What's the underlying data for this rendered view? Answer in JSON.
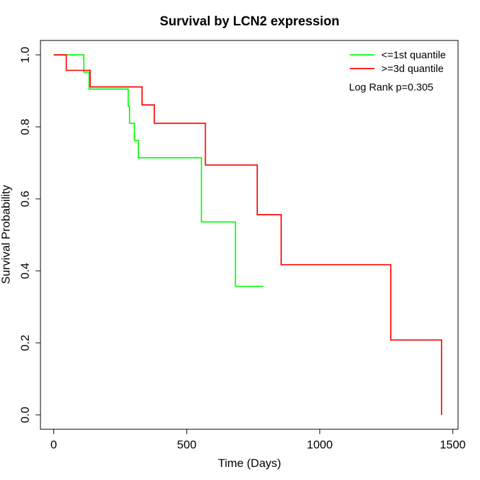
{
  "chart_data": {
    "type": "line",
    "title": "Survival by LCN2 expression",
    "xlabel": "Time (Days)",
    "ylabel": "Survival Probability",
    "xlim": [
      -50,
      1520
    ],
    "ylim": [
      -0.04,
      1.04
    ],
    "x_ticks": [
      0,
      500,
      1000,
      1500
    ],
    "y_ticks": [
      0.0,
      0.2,
      0.4,
      0.6,
      0.8,
      1.0
    ],
    "x_tick_labels": [
      "0",
      "500",
      "1000",
      "1500"
    ],
    "y_tick_labels": [
      "0.0",
      "0.2",
      "0.4",
      "0.6",
      "0.8",
      "1.0"
    ],
    "grid": false,
    "legend_position": "top-right",
    "annotation": "Log Rank p=0.305",
    "series": [
      {
        "name": "<=1st quantile",
        "color": "#00ff00",
        "step": true,
        "x": [
          0,
          113,
          133,
          280,
          285,
          303,
          318,
          555,
          683,
          788
        ],
        "y": [
          1.0,
          0.952,
          0.905,
          0.857,
          0.81,
          0.762,
          0.714,
          0.536,
          0.357,
          0.357
        ]
      },
      {
        "name": ">=3d quantile",
        "color": "#ff0000",
        "step": true,
        "x": [
          0,
          47,
          137,
          332,
          378,
          570,
          765,
          855,
          1267,
          1458
        ],
        "y": [
          1.0,
          0.957,
          0.911,
          0.861,
          0.81,
          0.694,
          0.556,
          0.417,
          0.208,
          0.0
        ]
      }
    ]
  }
}
